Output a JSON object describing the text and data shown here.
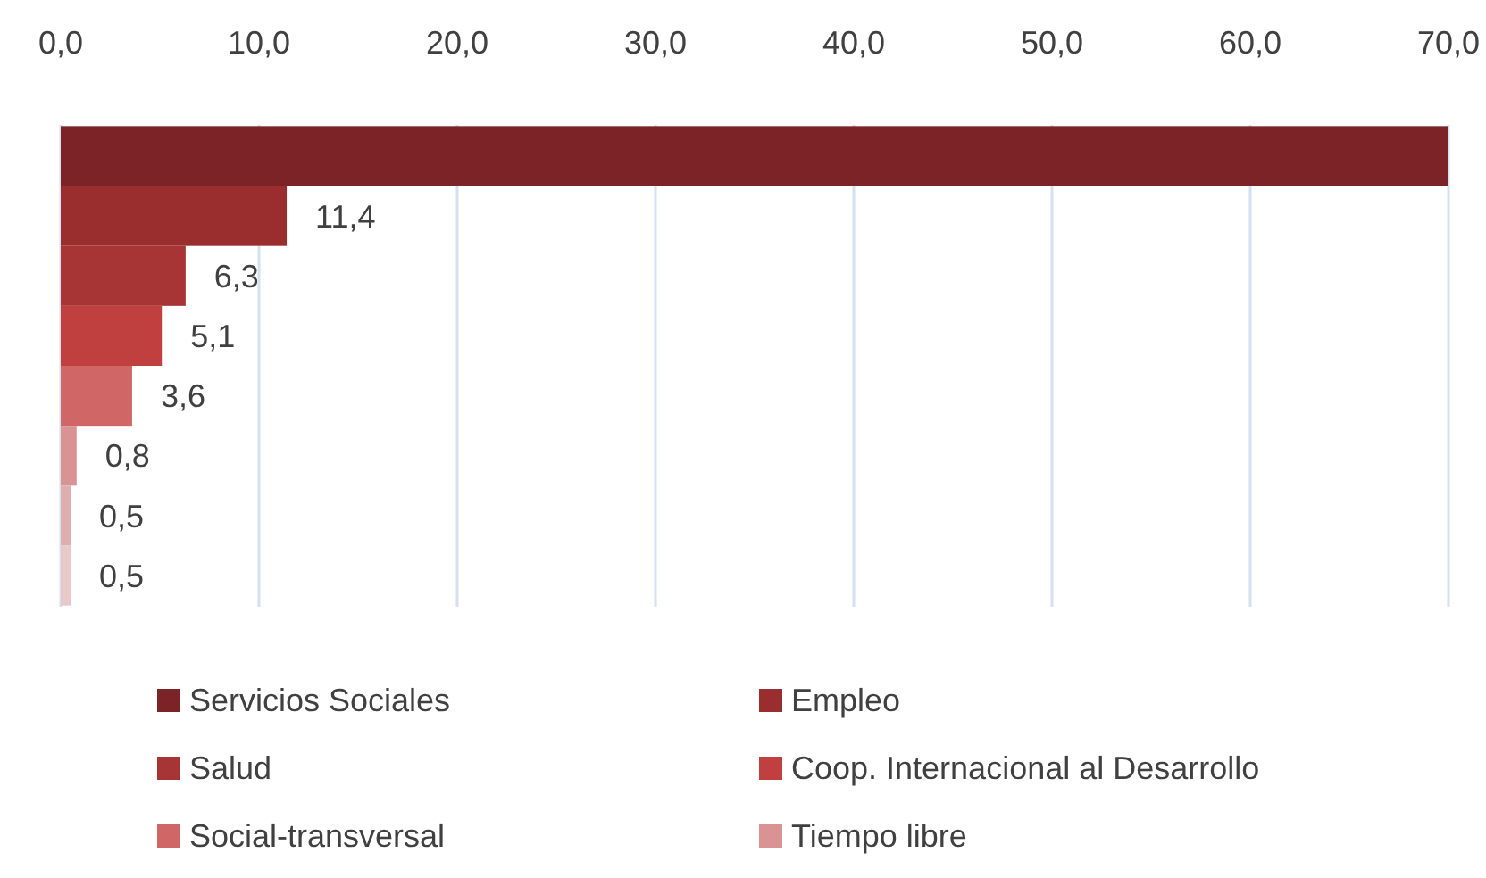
{
  "chart_data": {
    "type": "bar",
    "orientation": "horizontal",
    "categories": [
      null,
      null,
      null,
      null,
      null,
      null,
      null,
      null
    ],
    "xlim": [
      0,
      70
    ],
    "xticks": [
      {
        "value": 0,
        "label": "0,0"
      },
      {
        "value": 10,
        "label": "10,0"
      },
      {
        "value": 20,
        "label": "20,0"
      },
      {
        "value": 30,
        "label": "30,0"
      },
      {
        "value": 40,
        "label": "40,0"
      },
      {
        "value": 50,
        "label": "50,0"
      },
      {
        "value": 60,
        "label": "60,0"
      },
      {
        "value": 70,
        "label": "70,0"
      }
    ],
    "grid": "x",
    "legend": "bottom",
    "series": [
      {
        "name": "Servicios Sociales",
        "color": "#7b2326",
        "values": [
          70,
          null,
          null,
          null,
          null,
          null,
          null,
          null
        ]
      },
      {
        "name": "Empleo",
        "color": "#9a2d2e",
        "values": [
          null,
          11.4,
          null,
          null,
          null,
          null,
          null,
          null
        ],
        "value_labels": [
          null,
          "11,4",
          null,
          null,
          null,
          null,
          null,
          null
        ]
      },
      {
        "name": "Salud",
        "color": "#a83535",
        "values": [
          null,
          null,
          6.3,
          null,
          null,
          null,
          null,
          null
        ],
        "value_labels": [
          null,
          null,
          "6,3",
          null,
          null,
          null,
          null,
          null
        ]
      },
      {
        "name": "Coop. Internacional al Desarrollo",
        "color": "#c0403f",
        "values": [
          null,
          null,
          null,
          5.1,
          null,
          null,
          null,
          null
        ],
        "value_labels": [
          null,
          null,
          null,
          "5,1",
          null,
          null,
          null,
          null
        ]
      },
      {
        "name": "Social-transversal",
        "color": "#d06766",
        "values": [
          null,
          null,
          null,
          null,
          3.6,
          null,
          null,
          null
        ],
        "value_labels": [
          null,
          null,
          null,
          null,
          "3,6",
          null,
          null,
          null
        ]
      },
      {
        "name": "Tiempo libre",
        "color": "#d99393",
        "values": [
          null,
          null,
          null,
          null,
          null,
          0.8,
          null,
          null
        ],
        "value_labels": [
          null,
          null,
          null,
          null,
          null,
          "0,8",
          null,
          null
        ]
      },
      {
        "color": "#ddaeae",
        "values": [
          null,
          null,
          null,
          null,
          null,
          null,
          0.5,
          null
        ],
        "value_labels": [
          null,
          null,
          null,
          null,
          null,
          null,
          "0,5",
          null
        ]
      },
      {
        "color": "#e8c8c8",
        "values": [
          null,
          null,
          null,
          null,
          null,
          null,
          null,
          0.5
        ],
        "value_labels": [
          null,
          null,
          null,
          null,
          null,
          null,
          null,
          "0,5"
        ]
      }
    ]
  }
}
